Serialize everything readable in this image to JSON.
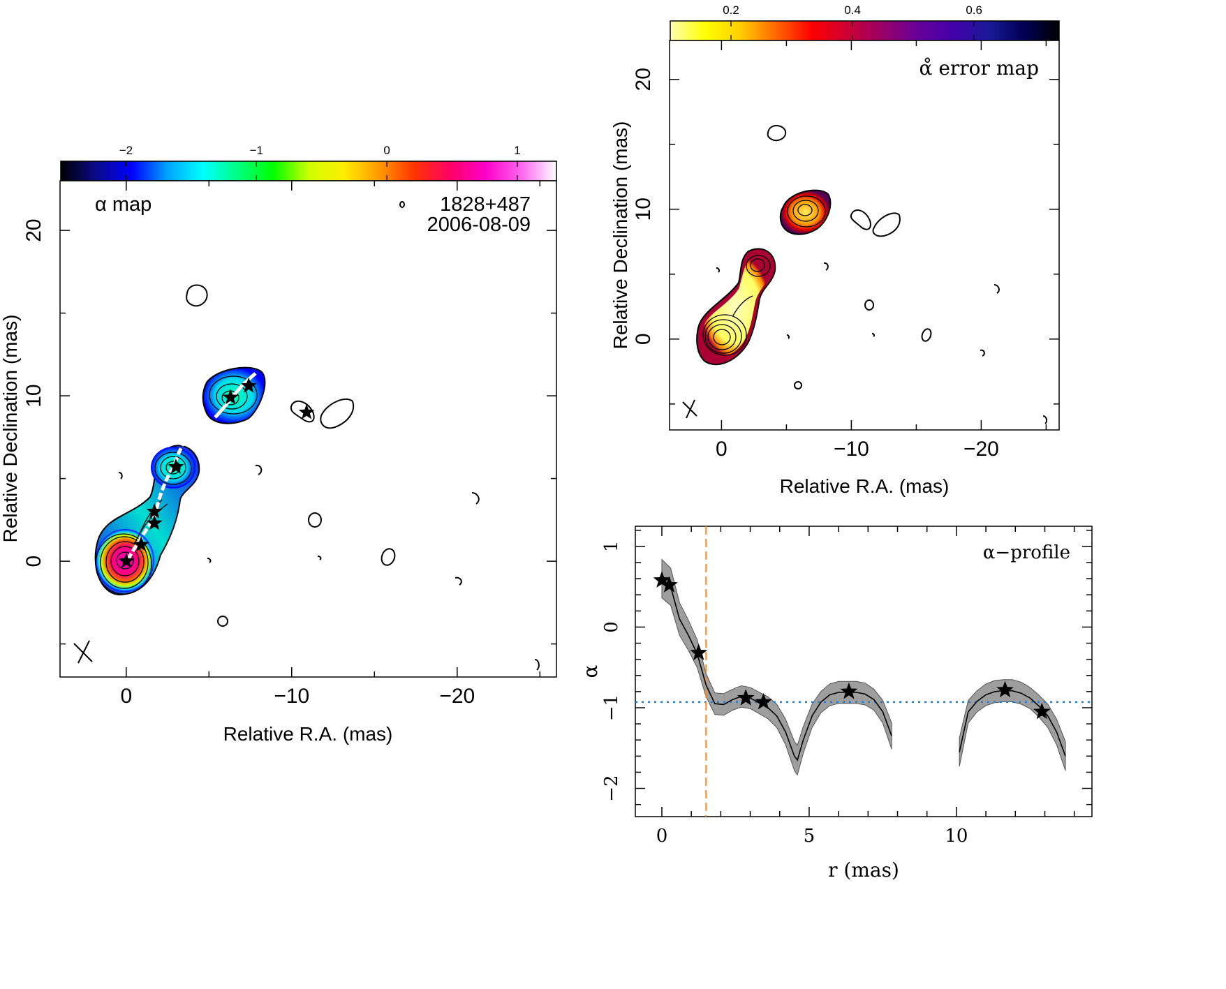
{
  "chart_data": [
    {
      "panel": "alpha-map",
      "type": "heatmap",
      "title": "α map",
      "source": "1828+487",
      "date": "2006-08-09",
      "xlabel": "Relative R.A. (mas)",
      "ylabel": "Relative Declination (mas)",
      "xlim": [
        4,
        -26
      ],
      "ylim": [
        -7,
        23
      ],
      "xticks": [
        0,
        -10,
        -20
      ],
      "xtick_labels": [
        "0",
        "−10",
        "−20"
      ],
      "yticks": [
        0,
        10,
        20
      ],
      "ytick_labels": [
        "0",
        "10",
        "20"
      ],
      "colorbar": {
        "range": [
          -2.5,
          1.3
        ],
        "ticks": [
          -2,
          -1,
          0,
          1
        ],
        "tick_labels": [
          "−2",
          "−1",
          "0",
          "1"
        ],
        "colormap": [
          "#000000",
          "#0a0a8a",
          "#0000ff",
          "#00a0ff",
          "#00ffff",
          "#00ff80",
          "#00ff00",
          "#ccff00",
          "#ffee00",
          "#ff9900",
          "#ff3300",
          "#ff0066",
          "#ff00cc",
          "#ff66ee",
          "#ffffff"
        ]
      },
      "stars": [
        {
          "x": 0.0,
          "y": 0.0
        },
        {
          "x": -0.9,
          "y": 1.0
        },
        {
          "x": -1.7,
          "y": 2.3
        },
        {
          "x": -1.7,
          "y": 3.0
        },
        {
          "x": -3.0,
          "y": 5.7
        },
        {
          "x": -6.3,
          "y": 9.9
        },
        {
          "x": -7.4,
          "y": 10.6
        },
        {
          "x": -10.9,
          "y": 9.0
        }
      ]
    },
    {
      "panel": "alpha-error-map",
      "type": "heatmap",
      "title": "α̊ error map",
      "xlabel": "Relative R.A. (mas)",
      "ylabel": "Relative Declination (mas)",
      "xlim": [
        4,
        -26
      ],
      "ylim": [
        -7,
        23
      ],
      "xticks": [
        0,
        -10,
        -20
      ],
      "xtick_labels": [
        "0",
        "−10",
        "−20"
      ],
      "yticks": [
        0,
        10,
        20
      ],
      "ytick_labels": [
        "0",
        "10",
        "20"
      ],
      "colorbar": {
        "range": [
          0.1,
          0.74
        ],
        "ticks": [
          0.2,
          0.4,
          0.6
        ],
        "tick_labels": [
          "0.2",
          "0.4",
          "0.6"
        ],
        "colormap": [
          "#ffffb0",
          "#ffff00",
          "#ffcc00",
          "#ff6600",
          "#ff0000",
          "#cc0033",
          "#990066",
          "#660099",
          "#4400aa",
          "#1a1a99",
          "#000055",
          "#000000"
        ]
      }
    },
    {
      "panel": "alpha-profile",
      "type": "line",
      "title": "α−profile",
      "xlabel": "r (mas)",
      "ylabel": "α",
      "xlim": [
        -0.9,
        14.6
      ],
      "ylim": [
        -2.35,
        1.25
      ],
      "xticks": [
        0,
        5,
        10
      ],
      "xtick_labels": [
        "0",
        "5",
        "10"
      ],
      "yticks": [
        1,
        0,
        -1,
        -2
      ],
      "ytick_labels": [
        "1",
        "0",
        "−1",
        "−2"
      ],
      "reference_alpha": -0.93,
      "vertical_marker_r": 1.5,
      "series": [
        {
          "x": [
            0.0,
            0.3,
            0.6,
            0.9,
            1.2,
            1.5,
            1.8,
            2.1,
            2.4,
            2.7,
            3.0,
            3.3,
            3.6,
            3.9,
            4.2,
            4.5,
            4.6,
            4.8,
            5.1,
            5.4,
            5.7,
            6.0,
            6.3,
            6.6,
            6.9,
            7.2,
            7.5,
            7.8
          ],
          "y": [
            0.6,
            0.5,
            0.1,
            -0.1,
            -0.33,
            -0.72,
            -0.95,
            -0.96,
            -0.9,
            -0.86,
            -0.88,
            -0.94,
            -1.0,
            -1.1,
            -1.3,
            -1.6,
            -1.65,
            -1.4,
            -1.1,
            -0.93,
            -0.84,
            -0.81,
            -0.81,
            -0.81,
            -0.83,
            -0.9,
            -1.05,
            -1.35
          ]
        },
        {
          "x": [
            10.1,
            10.4,
            10.7,
            11.0,
            11.3,
            11.6,
            11.9,
            12.2,
            12.5,
            12.8,
            13.1,
            13.4,
            13.7
          ],
          "y": [
            -1.55,
            -1.05,
            -0.92,
            -0.84,
            -0.8,
            -0.79,
            -0.79,
            -0.82,
            -0.88,
            -0.98,
            -1.1,
            -1.3,
            -1.6
          ]
        }
      ],
      "stars": [
        {
          "x": 0.0,
          "y": 0.58
        },
        {
          "x": 0.25,
          "y": 0.52
        },
        {
          "x": 1.25,
          "y": -0.32
        },
        {
          "x": 2.85,
          "y": -0.88
        },
        {
          "x": 3.45,
          "y": -0.93
        },
        {
          "x": 6.35,
          "y": -0.8
        },
        {
          "x": 11.65,
          "y": -0.78
        },
        {
          "x": 12.9,
          "y": -1.05
        }
      ]
    }
  ]
}
